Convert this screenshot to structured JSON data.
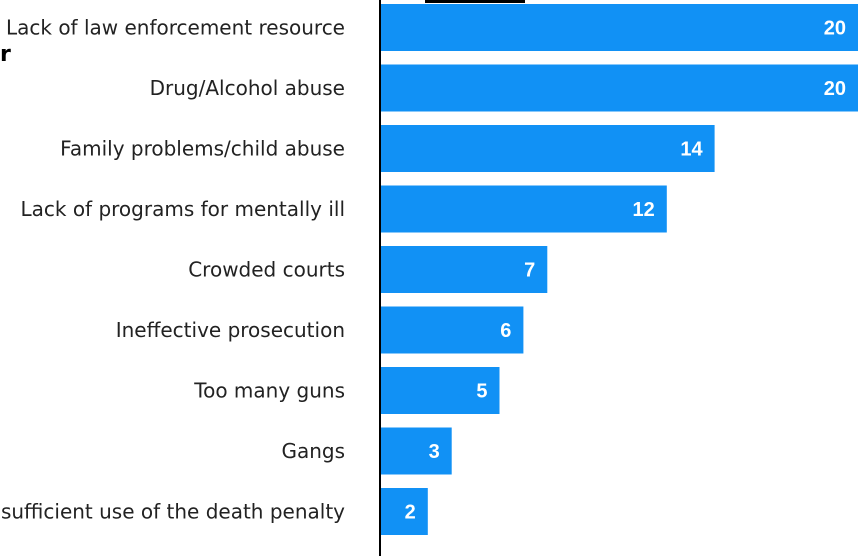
{
  "cropped_text": {
    "left_edge_fragment": "r"
  },
  "chart_data": {
    "type": "bar",
    "orientation": "horizontal",
    "title": "",
    "xlabel": "",
    "ylabel": "",
    "categories": [
      "Lack of law enforcement resource",
      "Drug/Alcohol abuse",
      "Family problems/child abuse",
      "Lack of programs for mentally ill",
      "Crowded courts",
      "Ineffective prosecution",
      "Too many guns",
      "Gangs",
      "Insufficient use of the death penalty"
    ],
    "values": [
      20,
      20,
      14,
      12,
      7,
      6,
      5,
      3,
      2
    ],
    "value_labels_inside_bars": true,
    "xlim": [
      0,
      20
    ],
    "grid": false,
    "legend": "none",
    "colors": {
      "bar": "#1191f5",
      "value_text": "#ffffff",
      "axis_line": "#000000",
      "label_text": "#222222"
    }
  }
}
